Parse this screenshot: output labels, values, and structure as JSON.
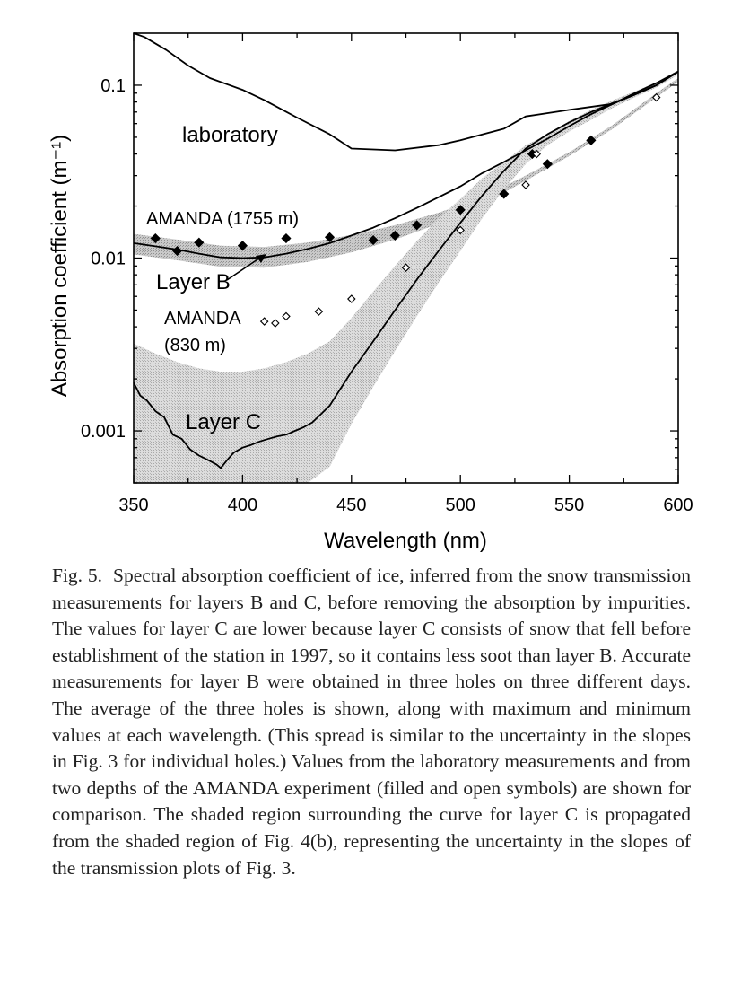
{
  "chart_data": {
    "type": "line",
    "xlabel": "Wavelength (nm)",
    "ylabel": "Absorption coefficient  (m⁻¹)",
    "xlim": [
      350,
      600
    ],
    "ylim": [
      0.0005,
      0.2
    ],
    "yscale": "log",
    "xticks": [
      350,
      400,
      450,
      500,
      550,
      600
    ],
    "xtick_labels": [
      "350",
      "400",
      "450",
      "500",
      "550",
      "600"
    ],
    "yticks": [
      0.001,
      0.01,
      0.1
    ],
    "ytick_labels": [
      "0.001",
      "0.01",
      "0.1"
    ],
    "grid": false,
    "legend": "none",
    "annotations": {
      "laboratory": "laboratory",
      "amanda_1755": "AMANDA (1755 m)",
      "layer_b": "Layer B",
      "amanda_830_line1": "AMANDA",
      "amanda_830_line2": "(830 m)",
      "layer_c": "Layer C"
    },
    "series": [
      {
        "name": "laboratory",
        "style": "line",
        "x": [
          350,
          355,
          365,
          375,
          385,
          400,
          410,
          425,
          440,
          450,
          470,
          490,
          500,
          520,
          530,
          550,
          570,
          590,
          600
        ],
        "y": [
          0.2,
          0.19,
          0.16,
          0.13,
          0.11,
          0.094,
          0.082,
          0.065,
          0.052,
          0.043,
          0.042,
          0.045,
          0.048,
          0.056,
          0.066,
          0.072,
          0.078,
          0.1,
          0.12
        ]
      },
      {
        "name": "Layer B",
        "style": "line",
        "x": [
          350,
          360,
          370,
          380,
          390,
          400,
          410,
          420,
          430,
          440,
          450,
          460,
          470,
          480,
          490,
          500,
          510,
          520,
          530,
          540,
          550,
          560,
          570,
          580,
          590,
          600
        ],
        "y": [
          0.0122,
          0.0117,
          0.0112,
          0.0106,
          0.0101,
          0.01,
          0.0101,
          0.0106,
          0.0113,
          0.0122,
          0.0135,
          0.015,
          0.017,
          0.0195,
          0.0225,
          0.026,
          0.031,
          0.036,
          0.042,
          0.049,
          0.058,
          0.068,
          0.078,
          0.09,
          0.103,
          0.12
        ]
      },
      {
        "name": "Layer B range",
        "style": "band",
        "x": [
          350,
          370,
          390,
          410,
          430,
          450,
          470,
          490,
          510,
          530,
          550,
          570,
          590,
          600
        ],
        "y_low": [
          0.0105,
          0.0097,
          0.0089,
          0.0088,
          0.0095,
          0.0108,
          0.0128,
          0.0158,
          0.0205,
          0.028,
          0.039,
          0.056,
          0.085,
          0.105
        ],
        "y_high": [
          0.0138,
          0.0128,
          0.0118,
          0.0116,
          0.0123,
          0.0136,
          0.0155,
          0.0183,
          0.0225,
          0.03,
          0.041,
          0.059,
          0.09,
          0.11
        ]
      },
      {
        "name": "Layer C",
        "style": "line",
        "x": [
          350,
          353,
          356,
          360,
          364,
          368,
          372,
          376,
          380,
          384,
          388,
          390,
          393,
          396,
          400,
          404,
          408,
          412,
          416,
          420,
          424,
          428,
          432,
          436,
          440,
          450,
          460,
          470,
          480,
          490,
          500,
          510,
          520,
          530,
          540,
          550,
          560,
          570,
          580,
          590,
          600
        ],
        "y": [
          0.0019,
          0.0016,
          0.0015,
          0.0013,
          0.0012,
          0.00095,
          0.0009,
          0.00078,
          0.00072,
          0.00068,
          0.00064,
          0.00061,
          0.00068,
          0.00075,
          0.0008,
          0.00083,
          0.00087,
          0.0009,
          0.00093,
          0.00095,
          0.001,
          0.00105,
          0.00112,
          0.00125,
          0.0014,
          0.0022,
          0.0033,
          0.005,
          0.0075,
          0.011,
          0.016,
          0.023,
          0.032,
          0.043,
          0.052,
          0.061,
          0.07,
          0.079,
          0.088,
          0.1,
          0.12
        ]
      },
      {
        "name": "Layer C uncertainty",
        "style": "band",
        "x": [
          350,
          360,
          370,
          380,
          390,
          400,
          410,
          420,
          430,
          440,
          450,
          460,
          470,
          480,
          490,
          500,
          510,
          520,
          530,
          540,
          550,
          560,
          570,
          580,
          590,
          600
        ],
        "y_low": [
          0.0005,
          0.0005,
          0.0005,
          0.0005,
          0.0005,
          0.0005,
          0.0005,
          0.0005,
          0.0005,
          0.00062,
          0.0011,
          0.0018,
          0.0029,
          0.0046,
          0.0072,
          0.011,
          0.017,
          0.025,
          0.035,
          0.045,
          0.054,
          0.063,
          0.074,
          0.085,
          0.097,
          0.115
        ],
        "y_high": [
          0.0032,
          0.0028,
          0.0025,
          0.0023,
          0.0022,
          0.0022,
          0.0023,
          0.0025,
          0.0028,
          0.0033,
          0.0045,
          0.0064,
          0.009,
          0.0125,
          0.017,
          0.022,
          0.029,
          0.036,
          0.045,
          0.052,
          0.062,
          0.072,
          0.082,
          0.092,
          0.104,
          0.122
        ]
      },
      {
        "name": "AMANDA (1755 m)",
        "style": "filled-diamond",
        "x": [
          360,
          370,
          380,
          400,
          420,
          440,
          460,
          470,
          480,
          500,
          520,
          533,
          540,
          560
        ],
        "y": [
          0.013,
          0.011,
          0.0123,
          0.0118,
          0.013,
          0.0132,
          0.0127,
          0.0135,
          0.0155,
          0.019,
          0.0235,
          0.04,
          0.035,
          0.048
        ]
      },
      {
        "name": "AMANDA (830 m)",
        "style": "open-diamond",
        "x": [
          410,
          415,
          420,
          435,
          450,
          475,
          500,
          530,
          535,
          590
        ],
        "y": [
          0.0043,
          0.0042,
          0.0046,
          0.0049,
          0.0058,
          0.0088,
          0.0145,
          0.0265,
          0.04,
          0.085
        ]
      }
    ]
  },
  "caption": {
    "label": "Fig. 5.",
    "text": "Spectral absorption coefficient of ice, inferred from the snow transmission measurements for layers B and C, before removing the absorption by impurities. The values for layer C are lower because layer C consists of snow that fell before establishment of the station in 1997, so it contains less soot than layer B. Accurate measurements for layer B were obtained in three holes on three different days. The average of the three holes is shown, along with maximum and minimum values at each wavelength. (This spread is similar to the uncertainty in the slopes in Fig. 3 for individual holes.) Values from the laboratory measurements and from two depths of the AMANDA experiment (filled and open symbols) are shown for comparison. The shaded region surrounding the curve for layer C is propagated from the shaded region of Fig. 4(b), representing the uncertainty in the slopes of the transmission plots of Fig. 3."
  }
}
